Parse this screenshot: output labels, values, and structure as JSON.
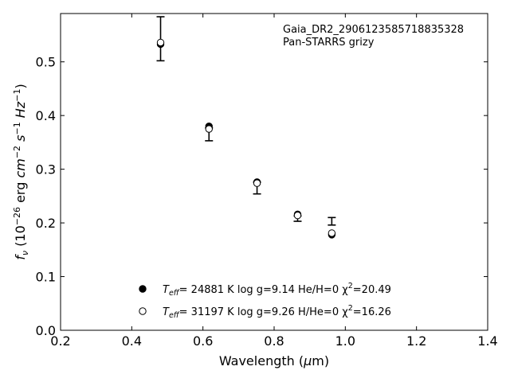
{
  "chart_data": {
    "type": "scatter",
    "xlabel": "Wavelength (μm)",
    "ylabel": "f_ν (10^-26 erg cm^-2 s^-1 Hz^-1)",
    "xlim": [
      0.2,
      1.4
    ],
    "ylim": [
      0.0,
      0.59
    ],
    "xticks": [
      "0.2",
      "0.4",
      "0.6",
      "0.8",
      "1.0",
      "1.2",
      "1.4"
    ],
    "yticks": [
      "0.0",
      "0.1",
      "0.2",
      "0.3",
      "0.4",
      "0.5"
    ],
    "grid": false,
    "annotations": [
      "Gaia_DR2_2906123585718835328",
      "Pan-STARRS grizy"
    ],
    "observed": {
      "x": [
        0.481,
        0.617,
        0.752,
        0.866,
        0.962
      ],
      "y": [
        0.543,
        0.365,
        0.265,
        0.208,
        0.203
      ],
      "yerr": [
        0.041,
        0.012,
        0.011,
        0.005,
        0.007
      ]
    },
    "series": [
      {
        "name": "T_eff= 24881 K  log g=9.14  He/H=0  χ²=20.49",
        "marker": "filled-circle",
        "x": [
          0.481,
          0.617,
          0.752,
          0.866,
          0.962
        ],
        "y": [
          0.533,
          0.38,
          0.276,
          0.216,
          0.178
        ]
      },
      {
        "name": "T_eff= 31197 K  log g=9.26  H/He=0  χ²=16.26",
        "marker": "open-circle",
        "x": [
          0.481,
          0.617,
          0.752,
          0.866,
          0.962
        ],
        "y": [
          0.536,
          0.375,
          0.274,
          0.214,
          0.181
        ]
      }
    ],
    "legend": {
      "placement": "lower-center",
      "entries": [
        {
          "teff": "= 24881 K  log g=9.14  He/H=0  χ",
          "chi": "=20.49"
        },
        {
          "teff": "= 31197 K  log g=9.26  H/He=0  χ",
          "chi": "=16.26"
        }
      ]
    }
  }
}
